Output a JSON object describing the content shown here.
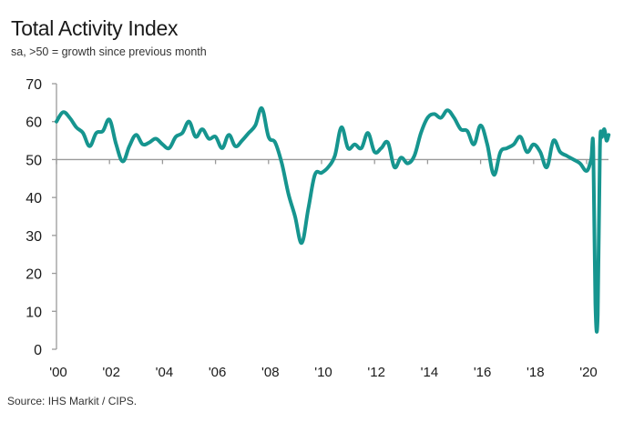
{
  "chart_data": {
    "type": "line",
    "title": "Total Activity Index",
    "subtitle": "sa, >50 = growth since previous month",
    "source": "Source: IHS Markit / CIPS.",
    "xlabel": "",
    "ylabel": "",
    "ylim": [
      0,
      70
    ],
    "xlim": [
      2000.0,
      2020.9
    ],
    "yticks": [
      0,
      10,
      20,
      30,
      40,
      50,
      60,
      70
    ],
    "xtick_labels": [
      "'00",
      "'02",
      "'04",
      "'06",
      "'08",
      "'10",
      "'12",
      "'14",
      "'16",
      "'18",
      "'20"
    ],
    "xtick_years": [
      2000,
      2002,
      2004,
      2006,
      2008,
      2010,
      2012,
      2014,
      2016,
      2018,
      2020
    ],
    "reference_line": 50,
    "line_color": "#16958f",
    "grid": false,
    "series": [
      {
        "name": "Total Activity Index",
        "x": [
          2000.0,
          2000.25,
          2000.5,
          2000.75,
          2001.0,
          2001.25,
          2001.5,
          2001.75,
          2002.0,
          2002.25,
          2002.5,
          2002.75,
          2003.0,
          2003.25,
          2003.5,
          2003.75,
          2004.0,
          2004.25,
          2004.5,
          2004.75,
          2005.0,
          2005.25,
          2005.5,
          2005.75,
          2006.0,
          2006.25,
          2006.5,
          2006.75,
          2007.0,
          2007.25,
          2007.5,
          2007.75,
          2008.0,
          2008.25,
          2008.5,
          2008.75,
          2009.0,
          2009.25,
          2009.5,
          2009.75,
          2010.0,
          2010.25,
          2010.5,
          2010.75,
          2011.0,
          2011.25,
          2011.5,
          2011.75,
          2012.0,
          2012.25,
          2012.5,
          2012.75,
          2013.0,
          2013.25,
          2013.5,
          2013.75,
          2014.0,
          2014.25,
          2014.5,
          2014.75,
          2015.0,
          2015.25,
          2015.5,
          2015.75,
          2016.0,
          2016.25,
          2016.5,
          2016.75,
          2017.0,
          2017.25,
          2017.5,
          2017.75,
          2018.0,
          2018.25,
          2018.5,
          2018.75,
          2019.0,
          2019.25,
          2019.5,
          2019.75,
          2020.0,
          2020.17,
          2020.25,
          2020.33,
          2020.42,
          2020.5,
          2020.58,
          2020.67,
          2020.75,
          2020.83
        ],
        "values": [
          60,
          62.5,
          61,
          58.5,
          57,
          53.5,
          57,
          57.5,
          60.5,
          54,
          49.5,
          53.5,
          56.5,
          54,
          54.5,
          55.5,
          54,
          53,
          56,
          57,
          60,
          56,
          58,
          55.5,
          56,
          53,
          56.5,
          53.5,
          55,
          57,
          59,
          63.5,
          56,
          54.5,
          49,
          41,
          35,
          28,
          37,
          46,
          46.5,
          48,
          51,
          58.5,
          53,
          54,
          53,
          57,
          52,
          53,
          54.5,
          48,
          50.5,
          49,
          51,
          57,
          61,
          62,
          61,
          63,
          61,
          58,
          57.5,
          54,
          59,
          54,
          46,
          52,
          53,
          54,
          56,
          52,
          54,
          52,
          48,
          55,
          52,
          51,
          50,
          49,
          47,
          50,
          53,
          12,
          9,
          53,
          56,
          58,
          55,
          56.5
        ]
      }
    ]
  }
}
